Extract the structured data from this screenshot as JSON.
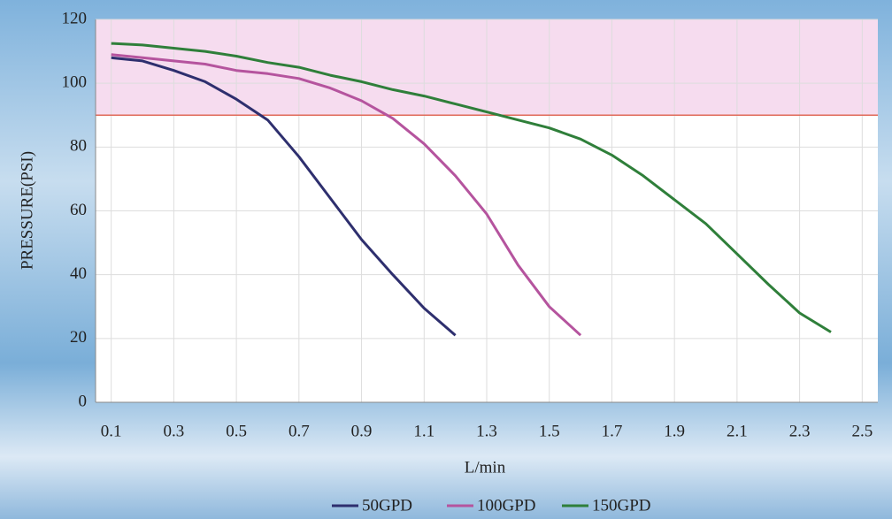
{
  "chart_data": {
    "type": "line",
    "x_label": "L/min",
    "y_label": "PRESSURE(PSI)",
    "xlim": [
      0.05,
      2.55
    ],
    "ylim": [
      0,
      120
    ],
    "xticks": [
      0.1,
      0.3,
      0.5,
      0.7,
      0.9,
      1.1,
      1.3,
      1.5,
      1.7,
      1.9,
      2.1,
      2.3,
      2.5
    ],
    "yticks": [
      0,
      20,
      40,
      60,
      80,
      100,
      120
    ],
    "grid": true,
    "threshold": 90,
    "threshold_color": "#e06a5a",
    "band_color": "#f6dcef",
    "legend_position": "bottom",
    "series": [
      {
        "name": "50GPD",
        "color": "#2e2f6e",
        "x": [
          0.1,
          0.2,
          0.3,
          0.4,
          0.5,
          0.6,
          0.7,
          0.8,
          0.9,
          1.0,
          1.1,
          1.2
        ],
        "values": [
          108,
          107,
          104,
          100.5,
          95,
          88.5,
          77,
          64,
          51,
          40,
          29.5,
          21
        ]
      },
      {
        "name": "100GPD",
        "color": "#b5549e",
        "x": [
          0.1,
          0.2,
          0.3,
          0.4,
          0.5,
          0.6,
          0.7,
          0.8,
          0.9,
          1.0,
          1.1,
          1.2,
          1.3,
          1.4,
          1.5,
          1.6
        ],
        "values": [
          109,
          108,
          107,
          106,
          104,
          103,
          101.5,
          98.5,
          94.5,
          89,
          81,
          71,
          59,
          43,
          30,
          21
        ]
      },
      {
        "name": "150GPD",
        "color": "#2f7f3a",
        "x": [
          0.1,
          0.2,
          0.3,
          0.4,
          0.5,
          0.6,
          0.7,
          0.8,
          0.9,
          1.0,
          1.1,
          1.2,
          1.3,
          1.4,
          1.5,
          1.6,
          1.7,
          1.8,
          1.9,
          2.0,
          2.1,
          2.2,
          2.3,
          2.4
        ],
        "values": [
          112.5,
          112,
          111,
          110,
          108.5,
          106.5,
          105,
          102.5,
          100.5,
          98,
          96,
          93.5,
          91,
          88.5,
          86,
          82.5,
          77.5,
          71,
          63.5,
          56,
          46.5,
          37,
          28,
          22
        ]
      }
    ]
  }
}
